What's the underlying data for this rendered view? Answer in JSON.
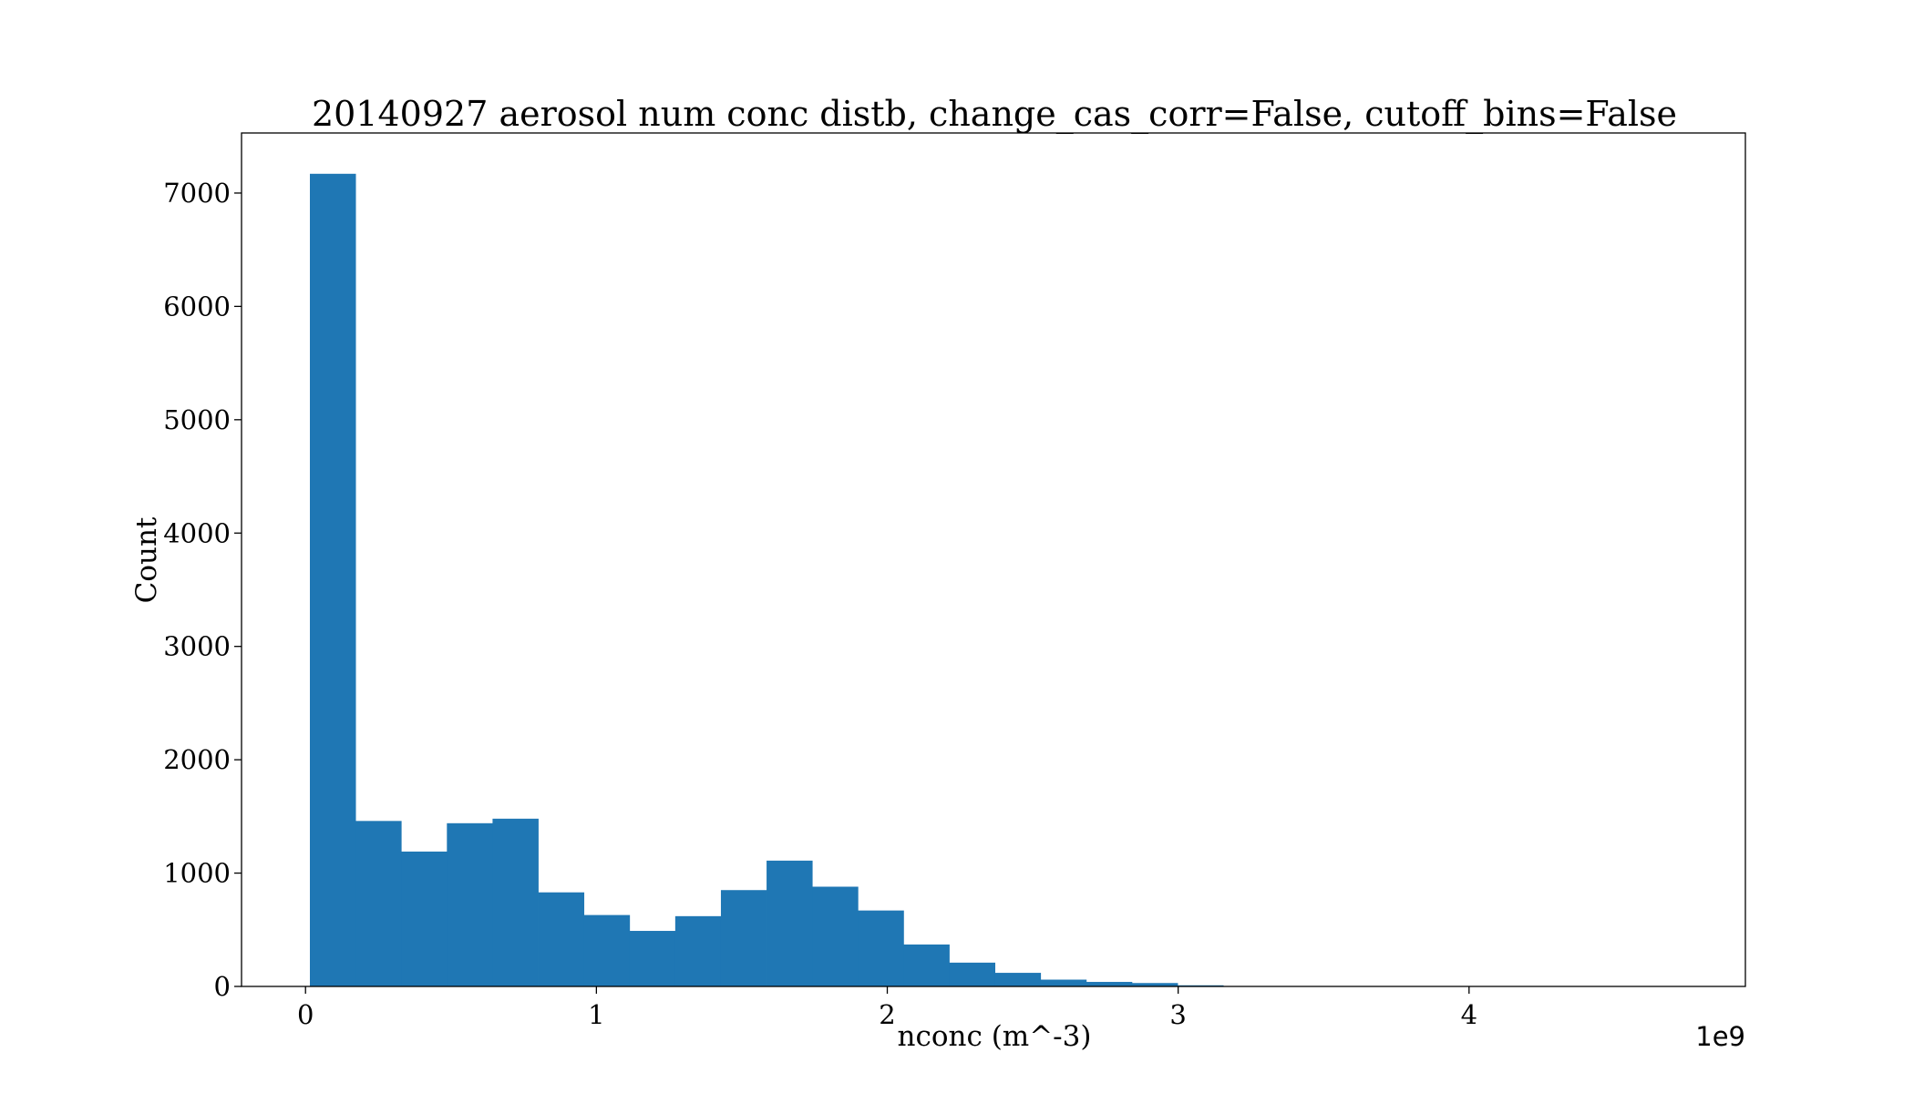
{
  "chart_data": {
    "type": "bar",
    "title": "20140927 aerosol num conc distb, change_cas_corr=False, cutoff_bins=False",
    "xlabel": "nconc (m^-3)",
    "ylabel": "Count",
    "x_offset_label": "1e9",
    "xlim": [
      -0.22,
      4.95
    ],
    "ylim": [
      0,
      7530
    ],
    "xticks": [
      0,
      1,
      2,
      3,
      4
    ],
    "xtick_labels": [
      "0",
      "1",
      "2",
      "3",
      "4"
    ],
    "yticks": [
      0,
      1000,
      2000,
      3000,
      4000,
      5000,
      6000,
      7000
    ],
    "ytick_labels": [
      "0",
      "1000",
      "2000",
      "3000",
      "4000",
      "5000",
      "6000",
      "7000"
    ],
    "grid": false,
    "bar_color": "#1f77b4",
    "bin_edges": [
      0.015,
      0.172,
      0.329,
      0.486,
      0.643,
      0.8,
      0.957,
      1.114,
      1.271,
      1.428,
      1.585,
      1.742,
      1.899,
      2.056,
      2.213,
      2.37,
      2.527,
      2.684,
      2.841,
      2.998,
      3.155,
      3.312,
      3.469,
      3.626,
      3.783,
      3.94,
      4.097,
      4.254,
      4.411,
      4.568,
      4.725
    ],
    "counts": [
      7170,
      1460,
      1190,
      1440,
      1480,
      830,
      630,
      490,
      620,
      850,
      1110,
      880,
      670,
      370,
      210,
      120,
      60,
      40,
      30,
      10,
      3,
      2,
      2,
      2,
      1,
      1,
      1,
      1,
      1,
      1
    ]
  }
}
